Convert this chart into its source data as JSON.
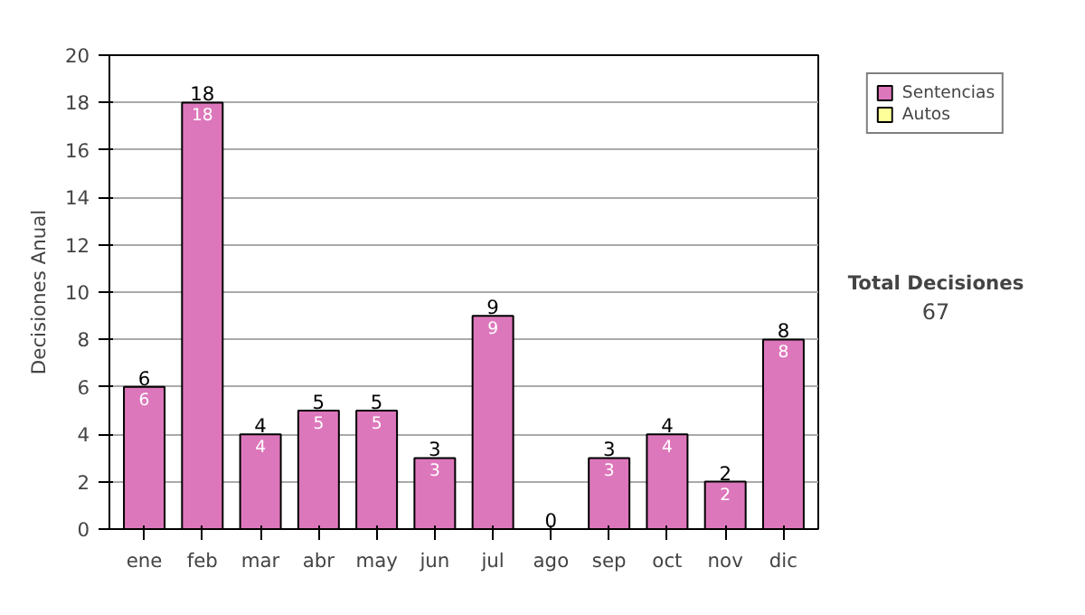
{
  "chart_data": {
    "type": "bar",
    "stacked": true,
    "ylabel": "Decisiones Anual",
    "categories": [
      "ene",
      "feb",
      "mar",
      "abr",
      "may",
      "jun",
      "jul",
      "ago",
      "sep",
      "oct",
      "nov",
      "dic"
    ],
    "series": [
      {
        "name": "Sentencias",
        "color": "#dd77bb",
        "values": [
          6,
          18,
          4,
          5,
          5,
          3,
          9,
          0,
          3,
          4,
          2,
          8
        ],
        "value_labels": [
          "6",
          "18",
          "4",
          "5",
          "5",
          "3",
          "9",
          null,
          "3",
          "4",
          "2",
          "8"
        ]
      },
      {
        "name": "Autos",
        "color": "#ffff99",
        "values": [
          0,
          0,
          0,
          0,
          0,
          0,
          0,
          0,
          0,
          0,
          0,
          0
        ]
      }
    ],
    "totals": [
      "6",
      "18",
      "4",
      "5",
      "5",
      "3",
      "9",
      "0",
      "3",
      "4",
      "2",
      "8"
    ],
    "ylim": [
      0,
      20
    ],
    "yticks": [
      0,
      2,
      4,
      6,
      8,
      10,
      12,
      14,
      16,
      18,
      20
    ],
    "grid": "y",
    "legend": "right",
    "annotations": [
      "Total Decisiones",
      "67"
    ]
  }
}
